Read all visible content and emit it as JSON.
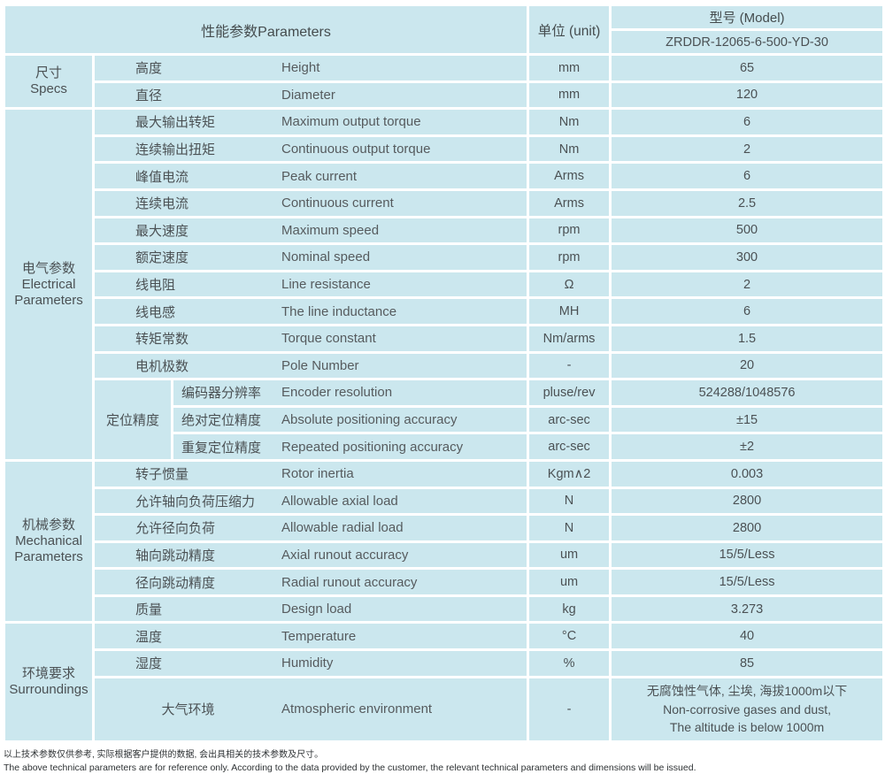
{
  "header": {
    "parameters_label": "性能参数Parameters",
    "unit_label": "单位 (unit)",
    "model_label": "型号 (Model)",
    "model_value": "ZRDDR-12065-6-500-YD-30"
  },
  "colors": {
    "header_bg": "#9ed8d0",
    "cell_bg": "#cbe7ee",
    "border": "#ffffff",
    "text": "#4b5154"
  },
  "sections": [
    {
      "key": "specs",
      "name_cn": "尺寸",
      "name_en": [
        "Specs"
      ],
      "rows": [
        {
          "cn": "高度",
          "en": "Height",
          "unit": "mm",
          "value": "65"
        },
        {
          "cn": "直径",
          "en": "Diameter",
          "unit": "mm",
          "value": "120"
        }
      ]
    },
    {
      "key": "electrical",
      "name_cn": "电气参数",
      "name_en": [
        "Electrical",
        "Parameters"
      ],
      "rows": [
        {
          "cn": "最大输出转矩",
          "en": "Maximum output torque",
          "unit": "Nm",
          "value": "6"
        },
        {
          "cn": "连续输出扭矩",
          "en": "Continuous output torque",
          "unit": "Nm",
          "value": "2"
        },
        {
          "cn": "峰值电流",
          "en": "Peak current",
          "unit": "Arms",
          "value": "6"
        },
        {
          "cn": "连续电流",
          "en": "Continuous current",
          "unit": "Arms",
          "value": "2.5"
        },
        {
          "cn": "最大速度",
          "en": "Maximum speed",
          "unit": "rpm",
          "value": "500"
        },
        {
          "cn": "额定速度",
          "en": "Nominal speed",
          "unit": "rpm",
          "value": "300"
        },
        {
          "cn": "线电阻",
          "en": "Line resistance",
          "unit": "Ω",
          "value": "2"
        },
        {
          "cn": "线电感",
          "en": "The line inductance",
          "unit": "MH",
          "value": "6"
        },
        {
          "cn": "转矩常数",
          "en": "Torque constant",
          "unit": "Nm/arms",
          "value": "1.5"
        },
        {
          "cn": "电机极数",
          "en": "Pole Number",
          "unit": "-",
          "value": "20"
        },
        {
          "group": {
            "label": "定位精度",
            "span": 3
          },
          "narrow": true,
          "cn": "编码器分辨率",
          "en": "Encoder resolution",
          "unit": "pluse/rev",
          "value": "524288/1048576"
        },
        {
          "narrow": true,
          "cn": "绝对定位精度",
          "en": "Absolute positioning accuracy",
          "unit": "arc-sec",
          "value": "±15"
        },
        {
          "narrow": true,
          "cn": "重复定位精度",
          "en": "Repeated positioning accuracy",
          "unit": "arc-sec",
          "value": "±2"
        }
      ]
    },
    {
      "key": "mechanical",
      "name_cn": "机械参数",
      "name_en": [
        "Mechanical",
        "Parameters"
      ],
      "rows": [
        {
          "cn": "转子惯量",
          "en": "Rotor inertia",
          "unit": "Kgm∧2",
          "value": "0.003"
        },
        {
          "cn": "允许轴向负荷压缩力",
          "en": "Allowable axial load",
          "unit": "N",
          "value": "2800"
        },
        {
          "cn": "允许径向负荷",
          "en": "Allowable radial load",
          "unit": "N",
          "value": "2800"
        },
        {
          "cn": "轴向跳动精度",
          "en": "Axial runout accuracy",
          "unit": "um",
          "value": "15/5/Less"
        },
        {
          "cn": "径向跳动精度",
          "en": "Radial runout accuracy",
          "unit": "um",
          "value": "15/5/Less"
        },
        {
          "cn": "质量",
          "en": "Design load",
          "unit": "kg",
          "value": "3.273"
        }
      ]
    },
    {
      "key": "surroundings",
      "name_cn": "环境要求",
      "name_en": [
        "Surroundings"
      ],
      "rows": [
        {
          "cn": "温度",
          "en": "Temperature",
          "unit": "°C",
          "value": "40"
        },
        {
          "cn": "湿度",
          "en": "Humidity",
          "unit": "%",
          "value": "85"
        },
        {
          "tall": true,
          "center_cn": true,
          "cn": "大气环境",
          "en": "Atmospheric environment",
          "unit": "-",
          "value_lines": [
            "无腐蚀性气体, 尘埃, 海拔1000m以下",
            "Non-corrosive gases and dust,",
            "The altitude is below 1000m"
          ]
        }
      ]
    }
  ],
  "footer": {
    "cn": "以上技术参数仅供参考, 实际根据客户提供的数据, 会出具相关的技术参数及尺寸。",
    "en": "The above technical parameters are for reference only. According to the data provided by the customer, the relevant technical parameters and dimensions will be issued."
  }
}
